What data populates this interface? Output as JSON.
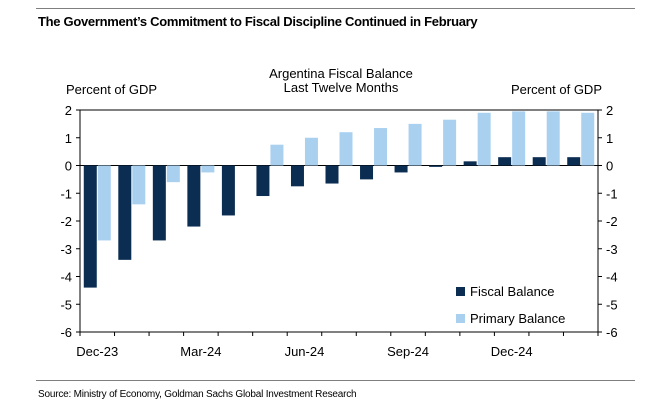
{
  "headline": "The Government’s Commitment to Fiscal Discipline Continued in February",
  "source": "Source: Ministry of Economy, Goldman Sachs Global Investment Research",
  "chart_data": {
    "type": "bar",
    "title": "Argentina Fiscal Balance",
    "subtitle": "Last Twelve Months",
    "ylabel_left": "Percent of GDP",
    "ylabel_right": "Percent of GDP",
    "ylim": [
      -6,
      2
    ],
    "yticks": [
      2,
      1,
      0,
      -1,
      -2,
      -3,
      -4,
      -5,
      -6
    ],
    "ytick_labels": [
      "2",
      "1",
      "0",
      "-1",
      "-2",
      "-3",
      "-4",
      "-5",
      "-6"
    ],
    "categories": [
      "Dec-23",
      "Jan-24",
      "Feb-24",
      "Mar-24",
      "Apr-24",
      "May-24",
      "Jun-24",
      "Jul-24",
      "Aug-24",
      "Sep-24",
      "Oct-24",
      "Nov-24",
      "Dec-24",
      "Jan-25",
      "Feb-25"
    ],
    "xtick_labels": [
      "Dec-23",
      "",
      "",
      "Mar-24",
      "",
      "",
      "Jun-24",
      "",
      "",
      "Sep-24",
      "",
      "",
      "Dec-24",
      "",
      ""
    ],
    "series": [
      {
        "name": "Fiscal Balance",
        "color": "#0b2d52",
        "values": [
          -4.4,
          -3.4,
          -2.7,
          -2.2,
          -1.8,
          -1.1,
          -0.75,
          -0.65,
          -0.5,
          -0.25,
          -0.05,
          0.15,
          0.3,
          0.3,
          0.3
        ]
      },
      {
        "name": "Primary Balance",
        "color": "#a9d0ef",
        "values": [
          -2.7,
          -1.4,
          -0.6,
          -0.25,
          null,
          0.75,
          1.0,
          1.2,
          1.35,
          1.5,
          1.65,
          1.9,
          1.95,
          1.95,
          1.9
        ]
      }
    ],
    "legend_position": "bottom-right"
  }
}
